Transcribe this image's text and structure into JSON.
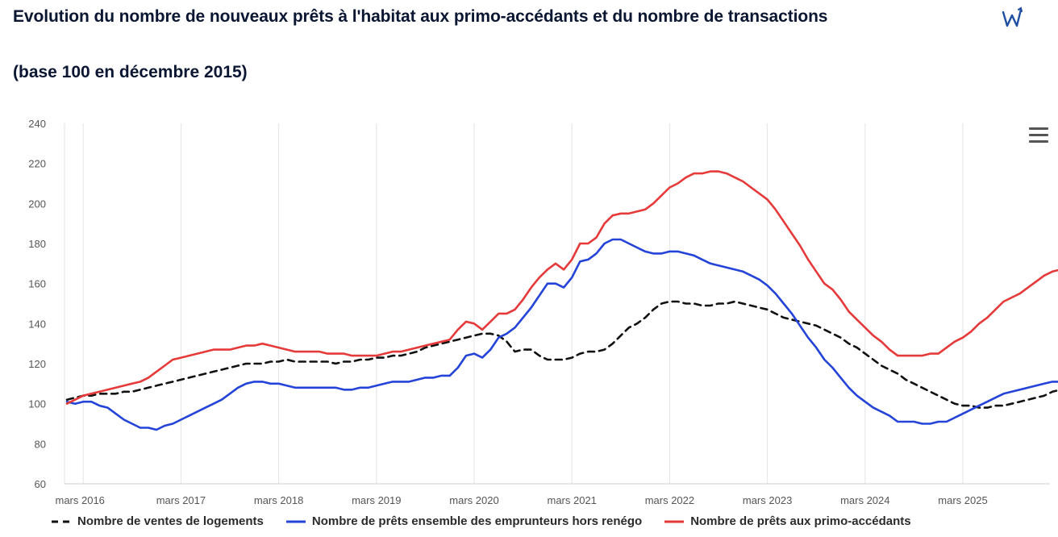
{
  "title": "Evolution du nombre de nouveaux prêts à l'habitat aux primo-accédants et du nombre de transactions",
  "subtitle": "(base 100 en décembre 2015)",
  "brand_icon": "w-logo-icon",
  "menu_icon": "hamburger-menu-icon",
  "chart_data": {
    "type": "line",
    "x_start": "2016-01",
    "x_step": "month",
    "ylim": [
      60,
      240
    ],
    "yticks": [
      60,
      80,
      100,
      120,
      140,
      160,
      180,
      200,
      220,
      240
    ],
    "xtick_labels": [
      "mars 2016",
      "mars 2017",
      "mars 2018",
      "mars 2019",
      "mars 2020",
      "mars 2021",
      "mars 2022",
      "mars 2023",
      "mars 2024",
      "mars 2025"
    ],
    "grid": "vertical",
    "legend_position": "bottom",
    "series": [
      {
        "name": "Nombre de ventes de logements",
        "color": "#111111",
        "dash": true,
        "values": [
          102,
          103,
          104,
          104,
          105,
          105,
          105,
          106,
          106,
          107,
          108,
          109,
          110,
          111,
          112,
          113,
          114,
          115,
          116,
          117,
          118,
          119,
          120,
          120,
          120,
          121,
          121,
          122,
          121,
          121,
          121,
          121,
          121,
          120,
          121,
          121,
          122,
          122,
          123,
          123,
          124,
          124,
          125,
          126,
          128,
          129,
          130,
          131,
          132,
          133,
          134,
          135,
          135,
          134,
          131,
          126,
          127,
          127,
          124,
          122,
          122,
          122,
          123,
          125,
          126,
          126,
          127,
          130,
          134,
          138,
          140,
          143,
          147,
          150,
          151,
          151,
          150,
          150,
          149,
          149,
          150,
          150,
          151,
          150,
          149,
          148,
          147,
          145,
          143,
          142,
          141,
          140,
          139,
          137,
          135,
          133,
          130,
          128,
          125,
          122,
          119,
          117,
          115,
          112,
          110,
          108,
          106,
          104,
          102,
          100,
          99,
          99,
          98,
          98,
          99,
          99,
          100,
          101,
          102,
          103,
          104,
          106,
          107,
          107,
          108,
          109,
          109,
          110,
          111,
          112,
          112,
          112
        ]
      },
      {
        "name": "Nombre de prêts ensemble des emprunteurs hors renégo",
        "color": "#2443d8",
        "dash": false,
        "values": [
          101,
          100,
          101,
          101,
          99,
          98,
          95,
          92,
          90,
          88,
          88,
          87,
          89,
          90,
          92,
          94,
          96,
          98,
          100,
          102,
          105,
          108,
          110,
          111,
          111,
          110,
          110,
          109,
          108,
          108,
          108,
          108,
          108,
          108,
          107,
          107,
          108,
          108,
          109,
          110,
          111,
          111,
          111,
          112,
          113,
          113,
          114,
          114,
          118,
          124,
          125,
          123,
          127,
          133,
          135,
          138,
          143,
          148,
          154,
          160,
          160,
          158,
          163,
          171,
          172,
          175,
          180,
          182,
          182,
          180,
          178,
          176,
          175,
          175,
          176,
          176,
          175,
          174,
          172,
          170,
          169,
          168,
          167,
          166,
          164,
          162,
          159,
          155,
          150,
          145,
          139,
          133,
          128,
          122,
          118,
          113,
          108,
          104,
          101,
          98,
          96,
          94,
          91,
          91,
          91,
          90,
          90,
          91,
          91,
          93,
          95,
          97,
          99,
          101,
          103,
          105,
          106,
          107,
          108,
          109,
          110,
          111,
          111,
          112,
          112,
          112
        ]
      },
      {
        "name": "Nombre de prêts aux primo-accédants",
        "color": "#e63a3a",
        "dash": false,
        "values": [
          100,
          102,
          104,
          105,
          106,
          107,
          108,
          109,
          110,
          111,
          113,
          116,
          119,
          122,
          123,
          124,
          125,
          126,
          127,
          127,
          127,
          128,
          129,
          129,
          130,
          129,
          128,
          127,
          126,
          126,
          126,
          126,
          125,
          125,
          125,
          124,
          124,
          124,
          124,
          125,
          126,
          126,
          127,
          128,
          129,
          130,
          131,
          132,
          137,
          141,
          140,
          137,
          141,
          145,
          145,
          147,
          152,
          158,
          163,
          167,
          170,
          167,
          172,
          180,
          180,
          183,
          190,
          194,
          195,
          195,
          196,
          197,
          200,
          204,
          208,
          210,
          213,
          215,
          215,
          216,
          216,
          215,
          213,
          211,
          208,
          205,
          202,
          197,
          191,
          185,
          179,
          172,
          166,
          160,
          157,
          152,
          146,
          142,
          138,
          134,
          131,
          127,
          124,
          124,
          124,
          124,
          125,
          125,
          128,
          131,
          133,
          136,
          140,
          143,
          147,
          151,
          153,
          155,
          158,
          161,
          164,
          166,
          167,
          168
        ]
      }
    ]
  }
}
